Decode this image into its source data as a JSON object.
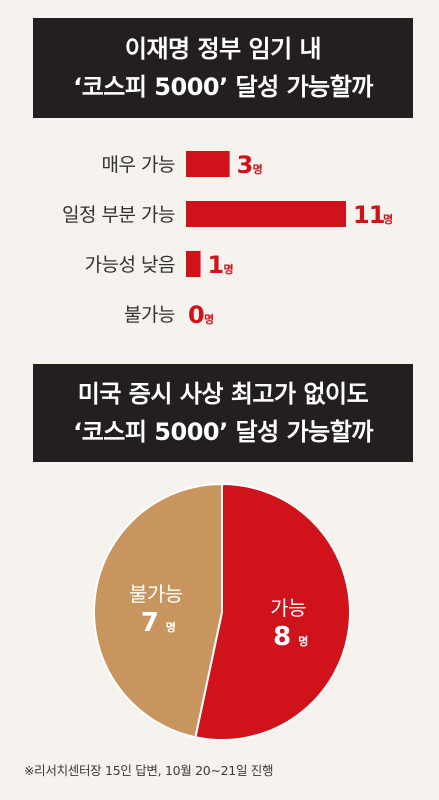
{
  "header1": {
    "line1": "이재명 정부 임기 내",
    "line2": "‘코스피 5000’ 달성 가능할까"
  },
  "header2": {
    "line1": "미국 증시 사상 최고가 없이도",
    "line2": "‘코스피 5000’ 달성 가능할까"
  },
  "chart_data": [
    {
      "type": "bar",
      "orientation": "horizontal",
      "categories": [
        "매우 가능",
        "일정 부분 가능",
        "가능성 낮음",
        "불가능"
      ],
      "values": [
        3,
        11,
        1,
        0
      ],
      "unit": "명",
      "color": "#d0121b"
    },
    {
      "type": "pie",
      "labels": [
        "가능",
        "불가능"
      ],
      "values": [
        8,
        7
      ],
      "unit": "명",
      "colors": [
        "#d0121b",
        "#c8955f"
      ]
    }
  ],
  "footnote": "※리서치센터장 15인 답변, 10월 20~21일 진행"
}
